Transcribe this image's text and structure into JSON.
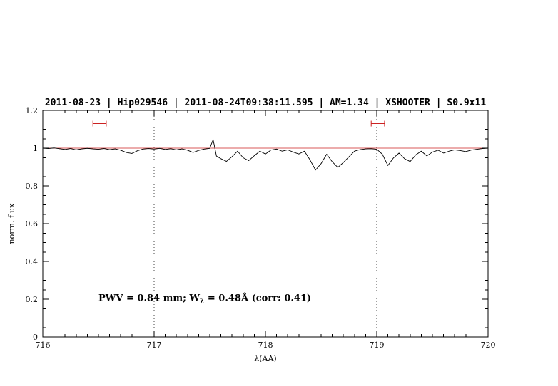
{
  "chart_data": {
    "type": "line",
    "title": "2011-08-23 | Hip029546 | 2011-08-24T09:38:11.595 | AM=1.34 | XSHOOTER | S0.9x11",
    "title_color": "#0000dd",
    "xlabel": "λ(AA)",
    "ylabel": "norm. flux",
    "xlim": [
      716,
      720
    ],
    "ylim": [
      0,
      1.2
    ],
    "grid": false,
    "xticks": {
      "values": [
        716,
        717,
        718,
        719,
        720
      ],
      "labels": [
        "716",
        "717",
        "718",
        "719",
        "720"
      ]
    },
    "yticks": {
      "values": [
        0,
        0.2,
        0.4,
        0.6,
        0.8,
        1,
        1.2
      ],
      "labels": [
        "0",
        "0.2",
        "0.4",
        "0.6",
        "0.8",
        "1",
        "1.2"
      ]
    },
    "x_minor_step": 0.1,
    "y_minor_step": 0.05,
    "vlines": {
      "values": [
        717,
        719
      ],
      "color": "#444444",
      "style": "dotted"
    },
    "continuum": {
      "y": 1.0,
      "color": "#cc2222"
    },
    "markers": [
      {
        "x1": 716.45,
        "x2": 716.57,
        "y": 1.13,
        "color": "#cc2222"
      },
      {
        "x1": 718.95,
        "x2": 719.07,
        "y": 1.13,
        "color": "#cc2222"
      }
    ],
    "annotation": {
      "part1": "PWV = 0.84 mm; W",
      "sub": "λ",
      "part2": " = 0.48Å (corr: 0.41)",
      "color": "#0000dd",
      "x": 716.5,
      "y": 0.19
    },
    "series": [
      {
        "name": "spectrum",
        "color": "#000000",
        "points": [
          [
            716.0,
            1.0
          ],
          [
            716.05,
            0.998
          ],
          [
            716.1,
            1.001
          ],
          [
            716.15,
            0.997
          ],
          [
            716.2,
            0.993
          ],
          [
            716.25,
            0.998
          ],
          [
            716.3,
            0.991
          ],
          [
            716.35,
            0.996
          ],
          [
            716.4,
            0.999
          ],
          [
            716.45,
            0.996
          ],
          [
            716.5,
            0.994
          ],
          [
            716.55,
            0.998
          ],
          [
            716.6,
            0.992
          ],
          [
            716.65,
            0.996
          ],
          [
            716.7,
            0.989
          ],
          [
            716.75,
            0.977
          ],
          [
            716.8,
            0.972
          ],
          [
            716.85,
            0.986
          ],
          [
            716.9,
            0.995
          ],
          [
            716.95,
            0.998
          ],
          [
            717.0,
            0.995
          ],
          [
            717.05,
            0.999
          ],
          [
            717.1,
            0.993
          ],
          [
            717.15,
            0.997
          ],
          [
            717.2,
            0.991
          ],
          [
            717.25,
            0.996
          ],
          [
            717.3,
            0.989
          ],
          [
            717.35,
            0.977
          ],
          [
            717.4,
            0.988
          ],
          [
            717.45,
            0.995
          ],
          [
            717.5,
            0.999
          ],
          [
            717.53,
            1.045
          ],
          [
            717.56,
            0.958
          ],
          [
            717.6,
            0.944
          ],
          [
            717.65,
            0.93
          ],
          [
            717.7,
            0.955
          ],
          [
            717.75,
            0.984
          ],
          [
            717.8,
            0.949
          ],
          [
            717.85,
            0.934
          ],
          [
            717.9,
            0.96
          ],
          [
            717.95,
            0.984
          ],
          [
            718.0,
            0.969
          ],
          [
            718.05,
            0.99
          ],
          [
            718.1,
            0.995
          ],
          [
            718.15,
            0.984
          ],
          [
            718.2,
            0.991
          ],
          [
            718.25,
            0.979
          ],
          [
            718.3,
            0.969
          ],
          [
            718.35,
            0.984
          ],
          [
            718.4,
            0.938
          ],
          [
            718.45,
            0.884
          ],
          [
            718.5,
            0.918
          ],
          [
            718.55,
            0.968
          ],
          [
            718.6,
            0.928
          ],
          [
            718.65,
            0.898
          ],
          [
            718.7,
            0.924
          ],
          [
            718.75,
            0.954
          ],
          [
            718.8,
            0.984
          ],
          [
            718.85,
            0.992
          ],
          [
            718.9,
            0.996
          ],
          [
            718.95,
            0.997
          ],
          [
            719.0,
            0.994
          ],
          [
            719.05,
            0.968
          ],
          [
            719.1,
            0.908
          ],
          [
            719.15,
            0.948
          ],
          [
            719.2,
            0.974
          ],
          [
            719.25,
            0.944
          ],
          [
            719.3,
            0.929
          ],
          [
            719.35,
            0.964
          ],
          [
            719.4,
            0.984
          ],
          [
            719.45,
            0.959
          ],
          [
            719.5,
            0.979
          ],
          [
            719.55,
            0.989
          ],
          [
            719.6,
            0.974
          ],
          [
            719.65,
            0.984
          ],
          [
            719.7,
            0.991
          ],
          [
            719.75,
            0.987
          ],
          [
            719.8,
            0.982
          ],
          [
            719.85,
            0.99
          ],
          [
            719.9,
            0.994
          ],
          [
            719.95,
            0.998
          ],
          [
            720.0,
            1.0
          ]
        ]
      }
    ]
  }
}
